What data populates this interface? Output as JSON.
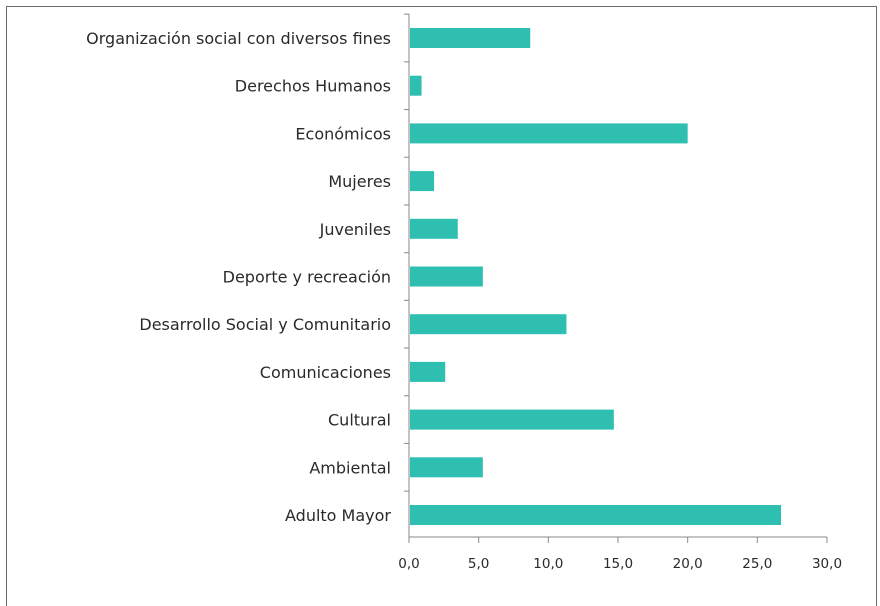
{
  "chart_data": {
    "type": "bar",
    "orientation": "horizontal",
    "title": "",
    "xlabel": "",
    "ylabel": "",
    "categories": [
      "Organización social con diversos fines",
      "Derechos Humanos",
      "Económicos",
      "Mujeres",
      "Juveniles",
      "Deporte y recreación",
      "Desarrollo Social y Comunitario",
      "Comunicaciones",
      "Cultural",
      "Ambiental",
      "Adulto Mayor"
    ],
    "values": [
      8.7,
      0.9,
      20.0,
      1.8,
      3.5,
      5.3,
      11.3,
      2.6,
      14.7,
      5.3,
      26.7
    ],
    "xlim": [
      0,
      30
    ],
    "xticks": [
      "0,0",
      "5,0",
      "10,0",
      "15,0",
      "20,0",
      "25,0",
      "30,0"
    ],
    "bar_color": "#2ebfb0",
    "grid": false,
    "legend": "none"
  }
}
